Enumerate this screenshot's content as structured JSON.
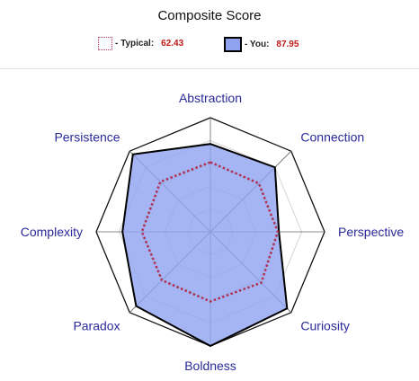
{
  "title": "Composite Score",
  "legend": {
    "typical": {
      "name": "- Typical:",
      "value": "62.43",
      "color": "#b03050"
    },
    "you": {
      "name": "- You:",
      "value": "87.95",
      "color": "#8ea2f0",
      "border": "#000000"
    }
  },
  "chart_data": {
    "type": "radar",
    "title": "Composite Score",
    "axes": [
      "Abstraction",
      "Connection",
      "Perspective",
      "Curiosity",
      "Boldness",
      "Paradox",
      "Complexity",
      "Persistence"
    ],
    "range": [
      0,
      100
    ],
    "rings": 5,
    "series": [
      {
        "name": "Typical",
        "values": [
          61,
          60,
          59,
          63,
          61,
          60,
          60,
          62
        ],
        "style": "dotted",
        "color": "#b03050"
      },
      {
        "name": "You",
        "values": [
          77,
          80,
          60,
          95,
          100,
          92,
          77,
          96
        ],
        "style": "filled",
        "color": "#8ea2f0"
      }
    ]
  }
}
